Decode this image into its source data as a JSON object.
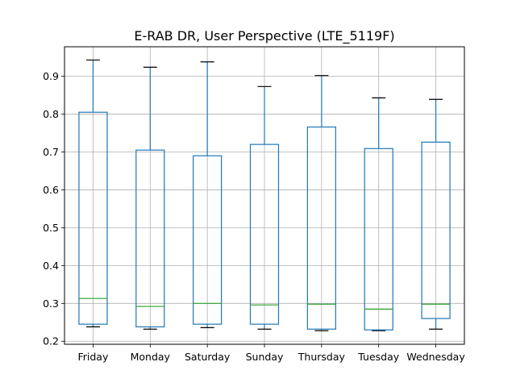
{
  "chart_data": {
    "type": "box",
    "title": "E-RAB DR, User Perspective (LTE_5119F)",
    "xlabel": "",
    "ylabel": "",
    "categories": [
      "Friday",
      "Monday",
      "Saturday",
      "Sunday",
      "Thursday",
      "Tuesday",
      "Wednesday"
    ],
    "boxes": [
      {
        "whisker_low": 0.238,
        "q1": 0.245,
        "median": 0.313,
        "q3": 0.805,
        "whisker_high": 0.943
      },
      {
        "whisker_low": 0.232,
        "q1": 0.238,
        "median": 0.292,
        "q3": 0.705,
        "whisker_high": 0.924
      },
      {
        "whisker_low": 0.236,
        "q1": 0.245,
        "median": 0.3,
        "q3": 0.69,
        "whisker_high": 0.938
      },
      {
        "whisker_low": 0.232,
        "q1": 0.245,
        "median": 0.296,
        "q3": 0.72,
        "whisker_high": 0.873
      },
      {
        "whisker_low": 0.228,
        "q1": 0.232,
        "median": 0.298,
        "q3": 0.766,
        "whisker_high": 0.902
      },
      {
        "whisker_low": 0.228,
        "q1": 0.23,
        "median": 0.285,
        "q3": 0.709,
        "whisker_high": 0.843
      },
      {
        "whisker_low": 0.232,
        "q1": 0.26,
        "median": 0.298,
        "q3": 0.726,
        "whisker_high": 0.839
      }
    ],
    "yticks": [
      0.2,
      0.3,
      0.4,
      0.5,
      0.6,
      0.7,
      0.8,
      0.9
    ],
    "ytick_labels": [
      "0.2",
      "0.3",
      "0.4",
      "0.5",
      "0.6",
      "0.7",
      "0.8",
      "0.9"
    ],
    "ylim": [
      0.192,
      0.978
    ],
    "grid": true,
    "colors": {
      "box": "#1f77b4",
      "median": "#2ca02c",
      "cap": "#000000",
      "grid": "#b0b0b0"
    }
  }
}
